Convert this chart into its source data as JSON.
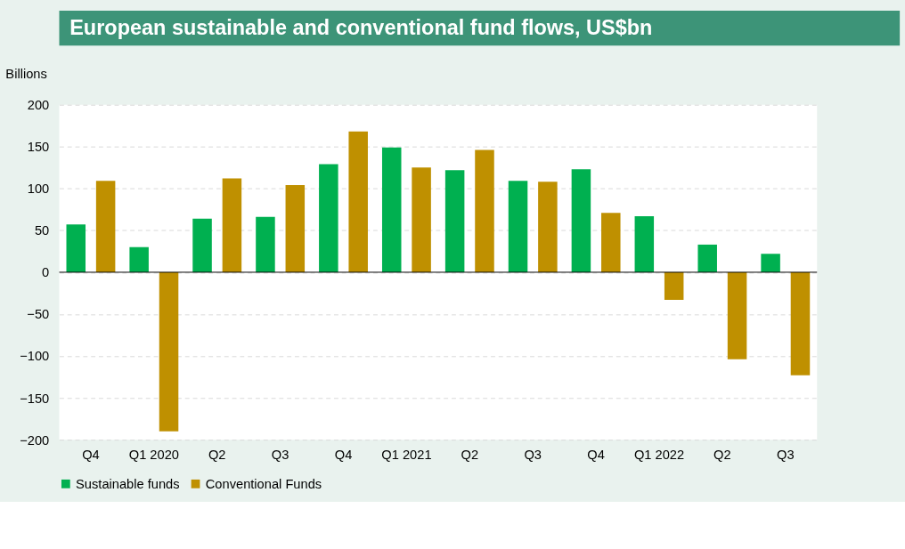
{
  "chart_data": {
    "type": "bar",
    "title": "European sustainable and conventional fund flows, US$bn",
    "ylabel": "Billions",
    "categories": [
      "Q4",
      "Q1 2020",
      "Q2",
      "Q3",
      "Q4",
      "Q1 2021",
      "Q2",
      "Q3",
      "Q4",
      "Q1 2022",
      "Q2",
      "Q3"
    ],
    "series": [
      {
        "name": "Sustainable funds",
        "color": "#00b050",
        "values": [
          57,
          30,
          64,
          66,
          129,
          149,
          122,
          109,
          123,
          67,
          33,
          22
        ]
      },
      {
        "name": "Conventional Funds",
        "color": "#bf9000",
        "values": [
          109,
          -190,
          112,
          104,
          168,
          125,
          146,
          108,
          71,
          -33,
          -104,
          -123
        ]
      }
    ],
    "ylim": [
      -200,
      200
    ],
    "yticks": [
      -200,
      -150,
      -100,
      -50,
      0,
      50,
      100,
      150,
      200
    ],
    "grid": "y",
    "legend": "bottom",
    "ref_lines": [
      {
        "axis": "y",
        "value": 0,
        "color": "#000000"
      }
    ]
  }
}
